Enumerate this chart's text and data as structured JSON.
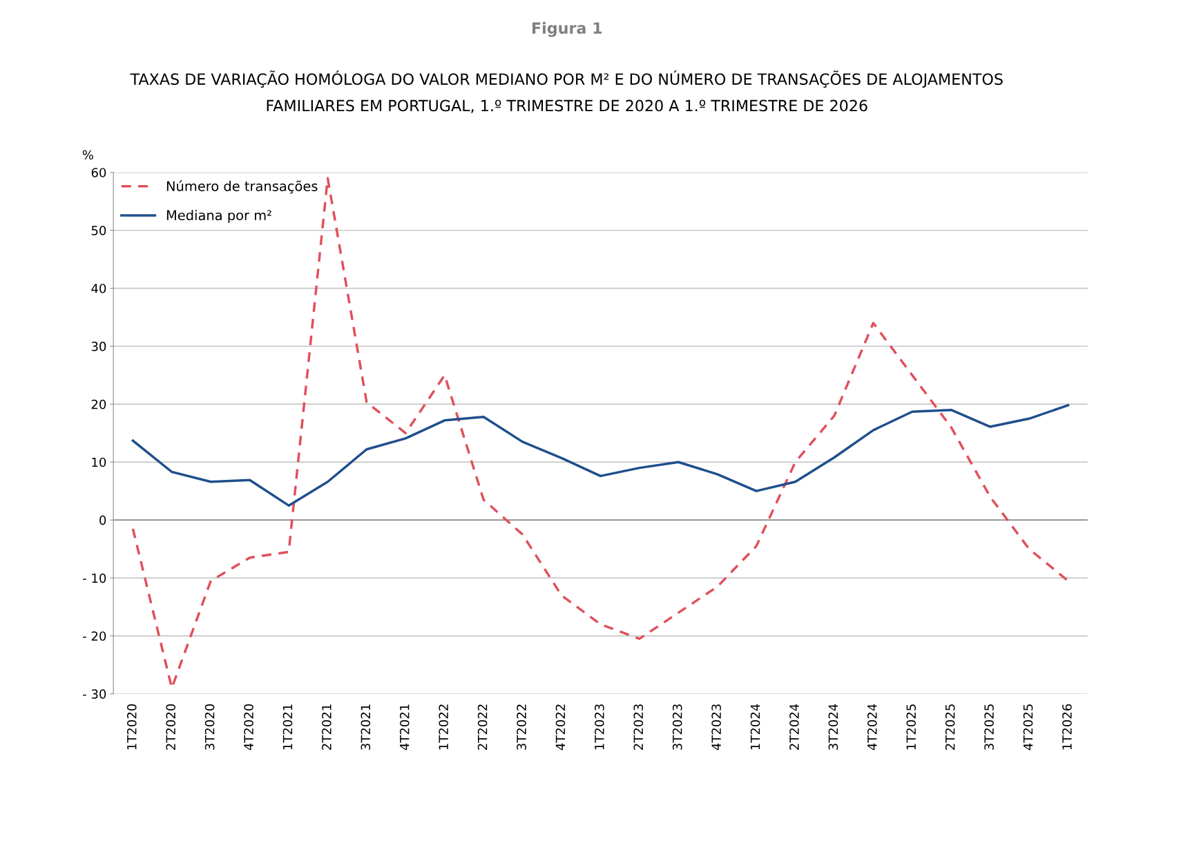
{
  "chart_data": {
    "type": "line",
    "title": "Figura 1",
    "subtitle": "TAXAS DE VARIAÇÃO HOMÓLOGA DO VALOR MEDIANO POR M² E DO NÚMERO DE TRANSAÇÕES DE ALOJAMENTOS\nFAMILIARES EM PORTUGAL, 1.º TRIMESTRE DE 2020 A 1.º TRIMESTRE DE 2026",
    "ylabel": "%",
    "categories": [
      "1T2020",
      "2T2020",
      "3T2020",
      "4T2020",
      "1T2021",
      "2T2021",
      "3T2021",
      "4T2021",
      "1T2022",
      "2T2022",
      "3T2022",
      "4T2022",
      "1T2023",
      "2T2023",
      "3T2023",
      "4T2023",
      "1T2024",
      "2T2024",
      "3T2024",
      "4T2024",
      "1T2025",
      "2T2025",
      "3T2025",
      "4T2025",
      "1T2026"
    ],
    "series": [
      {
        "name": "Número de transações",
        "color": "#e0505c",
        "line_style": "dashed",
        "values": [
          -1.5,
          -29,
          -10.5,
          -6.5,
          -5.5,
          59,
          20.3,
          15,
          25,
          3.5,
          -2.5,
          -13,
          -18,
          -20.5,
          -16,
          -11.5,
          -4.5,
          10,
          18,
          34,
          25,
          16,
          4,
          -5,
          -10.5
        ]
      },
      {
        "name": "Mediana por m²",
        "color": "#1f4e8c",
        "line_style": "solid",
        "values": [
          13.7,
          8.3,
          6.6,
          6.9,
          2.5,
          6.6,
          12.2,
          14.1,
          17.2,
          17.8,
          13.5,
          10.7,
          7.6,
          9,
          10,
          7.9,
          5,
          6.6,
          10.8,
          15.5,
          18.7,
          19,
          16.1,
          17.5,
          19.8
        ]
      }
    ],
    "ylim": [
      -30,
      60
    ],
    "yticks": [
      {
        "value": -30,
        "label": "- 30"
      },
      {
        "value": -20,
        "label": "- 20"
      },
      {
        "value": -10,
        "label": "- 10"
      },
      0,
      10,
      20,
      30,
      40,
      50,
      60
    ],
    "grid": "y",
    "legend": "top left",
    "marker": "none"
  }
}
